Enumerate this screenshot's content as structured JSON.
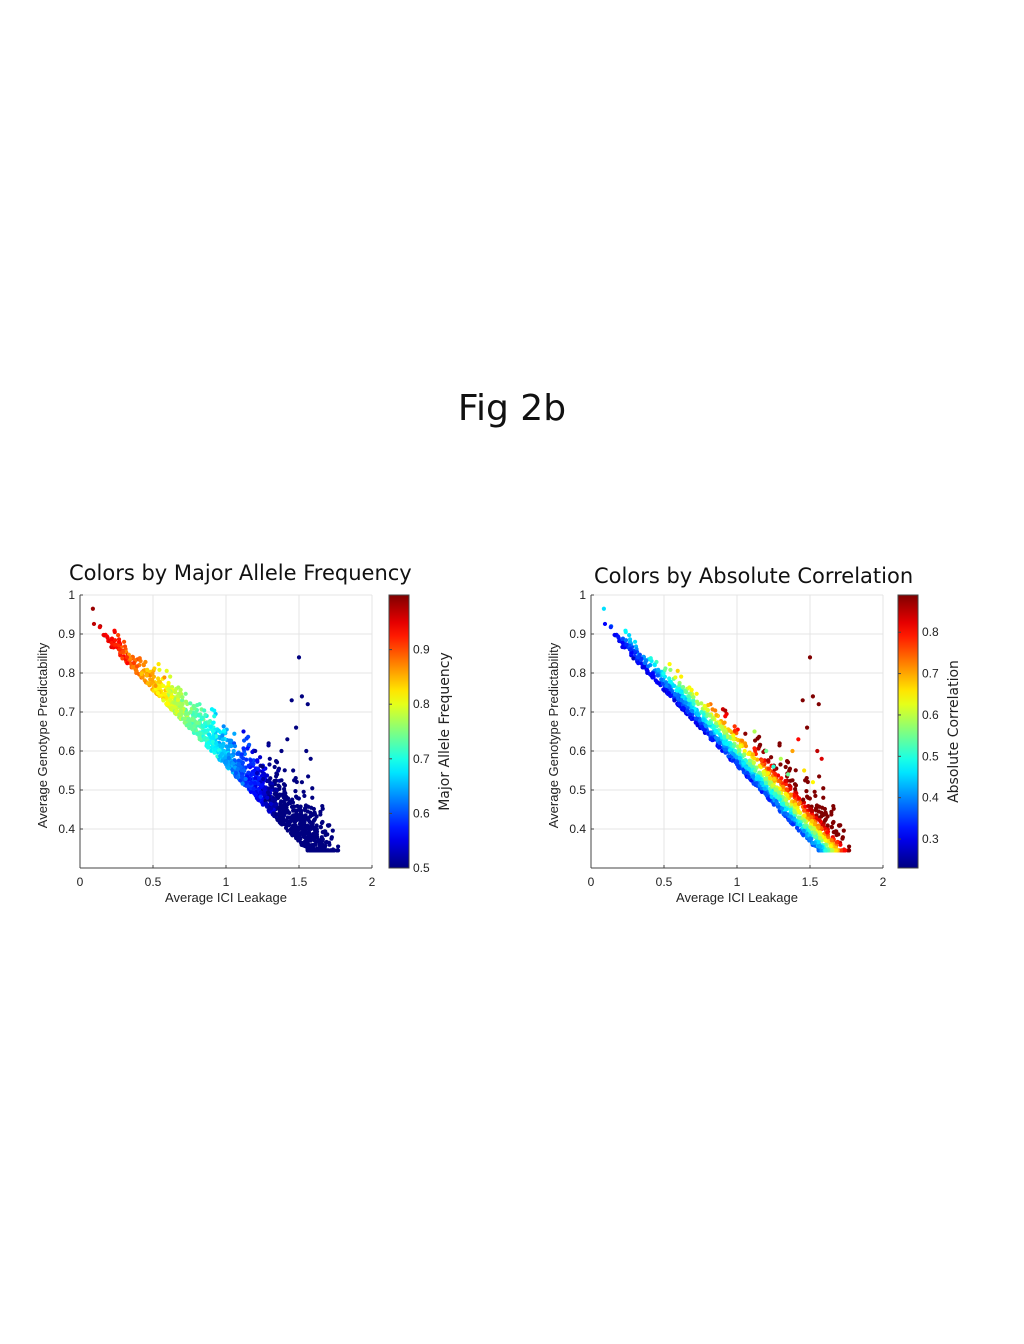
{
  "page": {
    "title": "Fig 2b"
  },
  "chart_data": [
    {
      "type": "scatter",
      "title": "Colors by Major Allele Frequency",
      "xlabel": "Average ICI Leakage",
      "ylabel": "Average Genotype Predictability",
      "xlim": [
        0,
        2
      ],
      "ylim": [
        0.3,
        1
      ],
      "x_ticks": [
        "0",
        "0.5",
        "1",
        "1.5",
        "2"
      ],
      "y_ticks": [
        "0.4",
        "0.5",
        "0.6",
        "0.7",
        "0.8",
        "0.9",
        "1"
      ],
      "grid": true,
      "colormap": "jet",
      "colorbar": {
        "label": "Major Allele Frequency",
        "range": [
          0.5,
          1.0
        ],
        "ticks": [
          "0.5",
          "0.6",
          "0.7",
          "0.8",
          "0.9"
        ]
      },
      "color_variable": "major_allele_frequency",
      "points_estimated": [
        {
          "x": 0.14,
          "y": 0.93,
          "c": 0.99
        },
        {
          "x": 0.2,
          "y": 0.9,
          "c": 0.98
        },
        {
          "x": 0.3,
          "y": 0.84,
          "c": 0.96
        },
        {
          "x": 0.42,
          "y": 0.8,
          "c": 0.95
        },
        {
          "x": 0.6,
          "y": 0.74,
          "c": 0.92
        },
        {
          "x": 0.8,
          "y": 0.65,
          "c": 0.87
        },
        {
          "x": 1.0,
          "y": 0.56,
          "c": 0.8
        },
        {
          "x": 1.2,
          "y": 0.48,
          "c": 0.73
        },
        {
          "x": 1.4,
          "y": 0.41,
          "c": 0.63
        },
        {
          "x": 1.6,
          "y": 0.37,
          "c": 0.55
        },
        {
          "x": 1.7,
          "y": 0.36,
          "c": 0.51
        },
        {
          "x": 1.5,
          "y": 0.84,
          "c": 0.57
        },
        {
          "x": 1.52,
          "y": 0.74,
          "c": 0.52
        },
        {
          "x": 1.55,
          "y": 0.72,
          "c": 0.52
        },
        {
          "x": 1.48,
          "y": 0.66,
          "c": 0.6
        },
        {
          "x": 1.56,
          "y": 0.6,
          "c": 0.55
        }
      ]
    },
    {
      "type": "scatter",
      "title": "Colors by Absolute Correlation",
      "xlabel": "Average ICI Leakage",
      "ylabel": "Average Genotype Predictability",
      "xlim": [
        0,
        2
      ],
      "ylim": [
        0.3,
        1
      ],
      "x_ticks": [
        "0",
        "0.5",
        "1",
        "1.5",
        "2"
      ],
      "y_ticks": [
        "0.4",
        "0.5",
        "0.6",
        "0.7",
        "0.8",
        "0.9",
        "1"
      ],
      "grid": true,
      "colormap": "jet",
      "colorbar": {
        "label": "Absolute Correlation",
        "range": [
          0.23,
          0.89
        ],
        "ticks": [
          "0.3",
          "0.4",
          "0.5",
          "0.6",
          "0.7",
          "0.8"
        ]
      },
      "color_variable": "absolute_correlation",
      "points_estimated": [
        {
          "x": 0.14,
          "y": 0.93,
          "c": 0.25
        },
        {
          "x": 0.3,
          "y": 0.84,
          "c": 0.3
        },
        {
          "x": 0.5,
          "y": 0.75,
          "c": 0.3
        },
        {
          "x": 0.8,
          "y": 0.64,
          "c": 0.33
        },
        {
          "x": 1.0,
          "y": 0.55,
          "c": 0.38
        },
        {
          "x": 1.2,
          "y": 0.47,
          "c": 0.4
        },
        {
          "x": 1.4,
          "y": 0.41,
          "c": 0.45
        },
        {
          "x": 1.6,
          "y": 0.37,
          "c": 0.4
        },
        {
          "x": 1.7,
          "y": 0.36,
          "c": 0.3
        },
        {
          "x": 1.5,
          "y": 0.84,
          "c": 0.85
        },
        {
          "x": 1.52,
          "y": 0.74,
          "c": 0.82
        },
        {
          "x": 1.55,
          "y": 0.72,
          "c": 0.8
        },
        {
          "x": 1.48,
          "y": 0.66,
          "c": 0.75
        },
        {
          "x": 0.9,
          "y": 0.8,
          "c": 0.62
        },
        {
          "x": 1.1,
          "y": 0.68,
          "c": 0.68
        },
        {
          "x": 1.4,
          "y": 0.52,
          "c": 0.7
        }
      ]
    }
  ]
}
